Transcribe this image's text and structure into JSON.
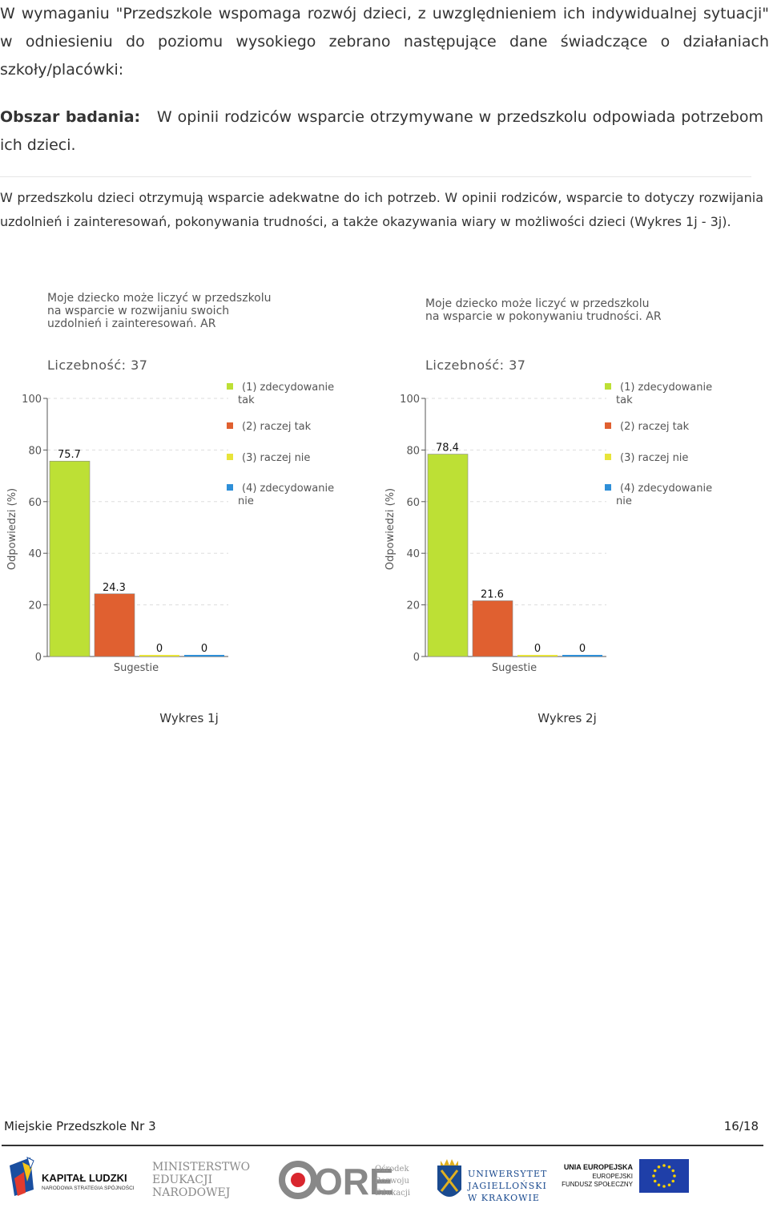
{
  "intro": "W wymaganiu \"Przedszkole wspomaga rozwój dzieci, z uwzględnieniem ich indywidualnej sytuacji\" w odniesieniu do poziomu wysokiego zebrano następujące dane świadczące o działaniach szkoły/placówki:",
  "area": {
    "label": "Obszar badania:",
    "text": "W opinii rodziców wsparcie otrzymywane w przedszkolu odpowiada potrzebom ich dzieci."
  },
  "paragraph": "W przedszkolu dzieci otrzymują wsparcie adekwatne do ich potrzeb. W opinii rodziców, wsparcie to dotyczy rozwijania uzdolnień i zainteresowań, pokonywania trudności, a także okazywania wiary w możliwości dzieci (Wykres 1j - 3j).",
  "colors": {
    "green": "#bde035",
    "orange": "#e06030",
    "yellow": "#e8e43a",
    "blue": "#2e8fd8"
  },
  "chart_data": [
    {
      "type": "bar",
      "title": [
        "Moje dziecko może liczyć w przedszkolu",
        "na wsparcie w rozwijaniu swoich",
        "uzdolnień i zainteresowań. AR"
      ],
      "subtitle": "Liczebność: 37",
      "xlabel": "Sugestie",
      "ylabel": "Odpowiedzi (%)",
      "ylim": [
        0,
        100
      ],
      "yticks": [
        "0",
        "20",
        "40",
        "60",
        "80",
        "100"
      ],
      "grid": true,
      "legend_position": "right",
      "series": [
        {
          "legend": [
            "(1) zdecydowanie",
            "tak"
          ],
          "value": 75.7,
          "label": "75.7"
        },
        {
          "legend": [
            "(2) raczej tak"
          ],
          "value": 24.3,
          "label": "24.3"
        },
        {
          "legend": [
            "(3) raczej nie"
          ],
          "value": 0,
          "label": "0"
        },
        {
          "legend": [
            "(4) zdecydowanie",
            "nie"
          ],
          "value": 0,
          "label": "0"
        }
      ],
      "caption": "Wykres 1j"
    },
    {
      "type": "bar",
      "title": [
        "Moje dziecko może liczyć w przedszkolu",
        "na wsparcie w pokonywaniu trudności. AR"
      ],
      "subtitle": "Liczebność: 37",
      "xlabel": "Sugestie",
      "ylabel": "Odpowiedzi (%)",
      "ylim": [
        0,
        100
      ],
      "yticks": [
        "0",
        "20",
        "40",
        "60",
        "80",
        "100"
      ],
      "grid": true,
      "legend_position": "right",
      "series": [
        {
          "legend": [
            "(1) zdecydowanie",
            "tak"
          ],
          "value": 78.4,
          "label": "78.4"
        },
        {
          "legend": [
            "(2) raczej tak"
          ],
          "value": 21.6,
          "label": "21.6"
        },
        {
          "legend": [
            "(3) raczej nie"
          ],
          "value": 0,
          "label": "0"
        },
        {
          "legend": [
            "(4) zdecydowanie",
            "nie"
          ],
          "value": 0,
          "label": "0"
        }
      ],
      "caption": "Wykres 2j"
    }
  ],
  "footer": {
    "school": "Miejskie Przedszkole Nr 3",
    "page": "16/18"
  },
  "logos": {
    "kapital_title": "KAPITAŁ LUDZKI",
    "kapital_sub": "NARODOWA STRATEGIA SPÓJNOŚCI",
    "men": [
      "MINISTERSTWO",
      "EDUKACJI",
      "NARODOWEJ"
    ],
    "ore_big": "ORE",
    "ore_small": [
      "Ośrodek",
      "Rozwoju",
      "Edukacji"
    ],
    "uj": [
      "UNIWERSYTET",
      "JAGIELLOŃSKI",
      "W KRAKOWIE"
    ],
    "eu": [
      "UNIA EUROPEJSKA",
      "EUROPEJSKI",
      "FUNDUSZ SPOŁECZNY"
    ]
  }
}
